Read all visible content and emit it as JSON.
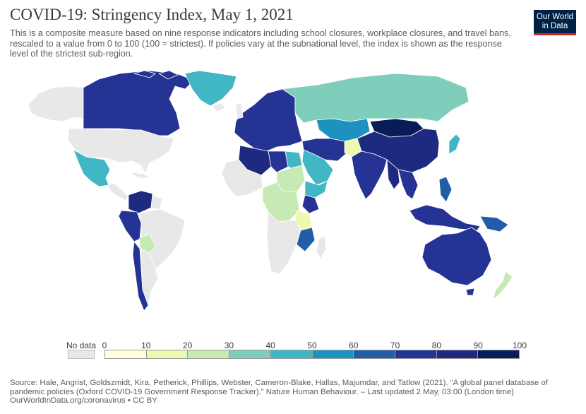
{
  "header": {
    "title": "COVID-19: Stringency Index, May 1, 2021",
    "subtitle": "This is a composite measure based on nine response indicators including school closures, workplace closures, and travel bans, rescaled to a value from 0 to 100 (100 = strictest). If policies vary at the subnational level, the index is shown as the response level of the strictest sub-region."
  },
  "logo": {
    "line1": "Our World",
    "line2": "in Data"
  },
  "legend": {
    "no_data_label": "No data",
    "no_data_color": "#e8e8e8",
    "ticks": [
      "0",
      "10",
      "20",
      "30",
      "40",
      "50",
      "60",
      "70",
      "80",
      "90",
      "100"
    ],
    "bins": [
      "#ffffd9",
      "#edf8b1",
      "#c7e9b4",
      "#7fcdbb",
      "#41b6c4",
      "#1d91c0",
      "#225ea8",
      "#253494",
      "#1e2a80",
      "#081d58"
    ]
  },
  "map": {
    "type": "choropleth",
    "metric": "Stringency Index",
    "scale_range": [
      0,
      100
    ],
    "ocean_color": "#ffffff",
    "regions": [
      {
        "name": "Canada",
        "value": 76
      },
      {
        "name": "United States",
        "value": null
      },
      {
        "name": "Alaska",
        "value": null
      },
      {
        "name": "Greenland",
        "value": 45
      },
      {
        "name": "Mexico",
        "value": 44
      },
      {
        "name": "Venezuela",
        "value": 85
      },
      {
        "name": "Colombia",
        "value": 80
      },
      {
        "name": "Brazil",
        "value": null
      },
      {
        "name": "Peru",
        "value": 75
      },
      {
        "name": "Bolivia",
        "value": 28
      },
      {
        "name": "Chile",
        "value": 75
      },
      {
        "name": "Argentina",
        "value": null
      },
      {
        "name": "Russia",
        "value": 38
      },
      {
        "name": "Kazakhstan",
        "value": 55
      },
      {
        "name": "Mongolia",
        "value": 92
      },
      {
        "name": "China",
        "value": 80
      },
      {
        "name": "India",
        "value": 75
      },
      {
        "name": "Iran",
        "value": 75
      },
      {
        "name": "Saudi Arabia",
        "value": 45
      },
      {
        "name": "Afghanistan",
        "value": 10
      },
      {
        "name": "Algeria",
        "value": 80
      },
      {
        "name": "Libya",
        "value": 78
      },
      {
        "name": "Egypt",
        "value": 40
      },
      {
        "name": "Sudan",
        "value": 25
      },
      {
        "name": "Ethiopia",
        "value": 45
      },
      {
        "name": "Kenya",
        "value": 70
      },
      {
        "name": "Tanzania",
        "value": 10
      },
      {
        "name": "DR Congo",
        "value": 28
      },
      {
        "name": "Mozambique",
        "value": 60
      },
      {
        "name": "South Africa",
        "value": null
      },
      {
        "name": "Myanmar",
        "value": 85
      },
      {
        "name": "Thailand",
        "value": 72
      },
      {
        "name": "Indonesia",
        "value": 70
      },
      {
        "name": "Papua New Guinea",
        "value": 66
      },
      {
        "name": "Philippines",
        "value": 68
      },
      {
        "name": "Japan",
        "value": 48
      },
      {
        "name": "Australia",
        "value": 75
      },
      {
        "name": "New Zealand",
        "value": 25
      },
      {
        "name": "Europe",
        "value": 72
      }
    ]
  },
  "footer": {
    "source": "Source: Hale, Angrist, Goldszmidt, Kira, Petherick, Phillips, Webster, Cameron-Blake, Hallas, Majumdar, and Tatlow (2021). “A global panel database of pandemic policies (Oxford COVID-19 Government Response Tracker).” Nature Human Behaviour. – Last updated 2 May, 03:00 (London time)",
    "link": "OurWorldInData.org/coronavirus • CC BY"
  }
}
